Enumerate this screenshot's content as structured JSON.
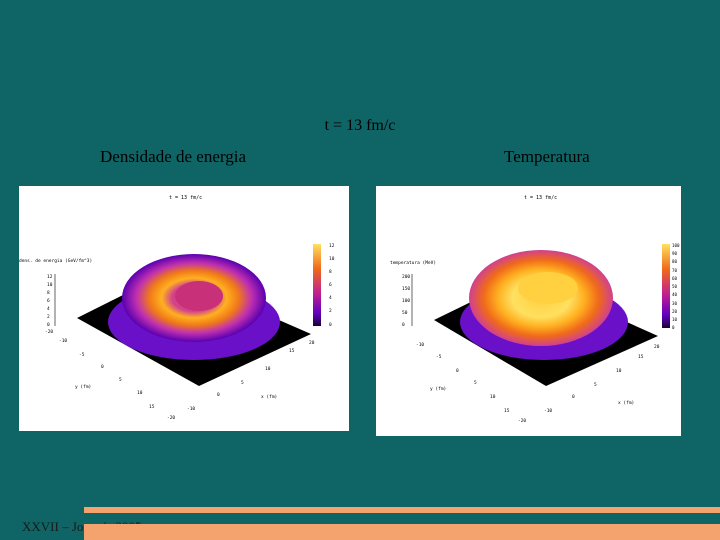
{
  "slide": {
    "title": "t = 13  fm/c",
    "footer": "XXVII – Jornada 2005"
  },
  "panels": [
    {
      "heading": "Densidade de energia",
      "plot_title": "t = 13 fm/c",
      "zlabel": "dens. de energia (GeV/fm^3)",
      "xlabel": "x (fm)",
      "ylabel": "y (fm)",
      "colorbar_ticks": [
        "12",
        "10",
        "8",
        "6",
        "4",
        "2",
        "0"
      ],
      "z_ticks": [
        "12",
        "10",
        "8",
        "6",
        "4",
        "2",
        "0"
      ],
      "x_ticks": [
        "-20",
        "-15",
        "-10",
        "-5",
        "0",
        "5",
        "10",
        "15",
        "20"
      ],
      "y_ticks": [
        "-20",
        "-15",
        "-10",
        "-5",
        "0",
        "5",
        "10",
        "15",
        "20"
      ]
    },
    {
      "heading": "Temperatura",
      "plot_title": "t = 13 fm/c",
      "zlabel": "temperatura (MeV)",
      "xlabel": "x (fm)",
      "ylabel": "y (fm)",
      "colorbar_ticks": [
        "100",
        "90",
        "80",
        "70",
        "60",
        "50",
        "40",
        "30",
        "20",
        "10",
        "0"
      ],
      "z_ticks": [
        "200",
        "150",
        "100",
        "50",
        "0"
      ],
      "x_ticks": [
        "-20",
        "-15",
        "-10",
        "-5",
        "0",
        "5",
        "10",
        "15",
        "20"
      ],
      "y_ticks": [
        "-20",
        "-15",
        "-10",
        "-5",
        "0",
        "5",
        "10",
        "15",
        "20"
      ]
    }
  ],
  "colors": {
    "background": "#0f6466",
    "footer_bar": "#f4a26e",
    "colormap": [
      "#1a0033",
      "#5a00b0",
      "#a020d0",
      "#d04090",
      "#f06a1a",
      "#ffb020",
      "#ffe060"
    ]
  }
}
